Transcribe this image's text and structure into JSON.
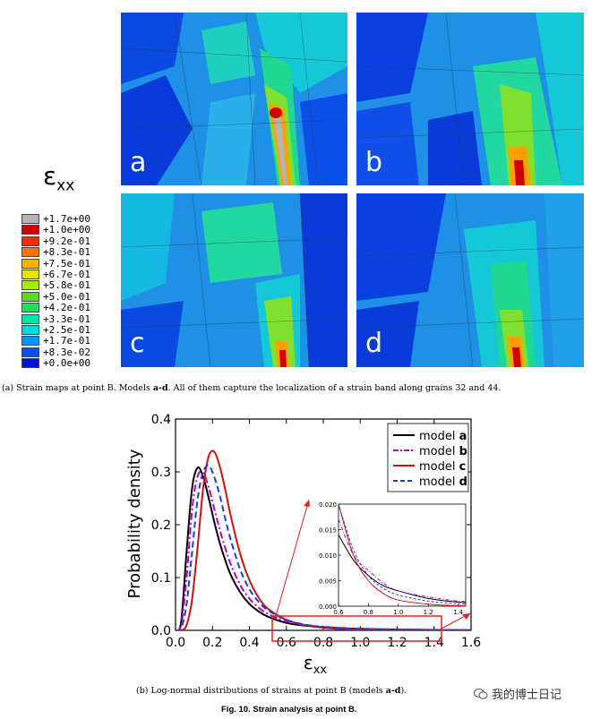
{
  "panel_a": {
    "colorbar_symbol": "ε",
    "colorbar_symbol_sub": "xx",
    "legend": [
      {
        "label": "+1.7e+00",
        "color": "#b4b4b4"
      },
      {
        "label": "+1.0e+00",
        "color": "#d00000"
      },
      {
        "label": "+9.2e-01",
        "color": "#ff2a00"
      },
      {
        "label": "+8.3e-01",
        "color": "#ff7200"
      },
      {
        "label": "+7.5e-01",
        "color": "#ffb400"
      },
      {
        "label": "+6.7e-01",
        "color": "#e5e500"
      },
      {
        "label": "+5.8e-01",
        "color": "#a6ec00"
      },
      {
        "label": "+5.0e-01",
        "color": "#5cd91c"
      },
      {
        "label": "+4.2e-01",
        "color": "#1fe05a"
      },
      {
        "label": "+3.3e-01",
        "color": "#00e5a8"
      },
      {
        "label": "+2.5e-01",
        "color": "#00d8e0"
      },
      {
        "label": "+1.7e-01",
        "color": "#0096ff"
      },
      {
        "label": "+8.3e-02",
        "color": "#0050ff"
      },
      {
        "label": "+0.0e+00",
        "color": "#0010dd"
      }
    ],
    "maps": [
      {
        "label": "a"
      },
      {
        "label": "b"
      },
      {
        "label": "c"
      },
      {
        "label": "d"
      }
    ],
    "caption": {
      "prefix": "(a) Strain maps at point B. Models ",
      "bold": "a-d",
      "suffix": ". All of them capture the localization of a strain band along grains 32 and 44."
    }
  },
  "chart_data": {
    "type": "line",
    "title": "",
    "xlabel": "ε",
    "xlabel_sub": "xx",
    "ylabel": "Probability density",
    "xlim": [
      0.0,
      1.6
    ],
    "ylim": [
      0.0,
      0.4
    ],
    "xticks": [
      "0.0",
      "0.2",
      "0.4",
      "0.6",
      "0.8",
      "1.0",
      "1.2",
      "1.4",
      "1.6"
    ],
    "yticks": [
      "0.0",
      "0.1",
      "0.2",
      "0.3",
      "0.4"
    ],
    "legend_position": "top-right",
    "x": [
      0.0,
      0.03,
      0.06,
      0.09,
      0.12,
      0.15,
      0.18,
      0.21,
      0.24,
      0.27,
      0.3,
      0.35,
      0.4,
      0.45,
      0.5,
      0.6,
      0.7,
      0.8,
      0.9,
      1.0,
      1.2,
      1.4,
      1.6
    ],
    "series": [
      {
        "name": "model ",
        "name_bold": "a",
        "color": "#000000",
        "dash": "solid",
        "values": [
          0.0,
          0.015,
          0.15,
          0.27,
          0.308,
          0.29,
          0.25,
          0.205,
          0.165,
          0.132,
          0.104,
          0.072,
          0.05,
          0.036,
          0.026,
          0.014,
          0.009,
          0.006,
          0.004,
          0.003,
          0.0015,
          0.0008,
          0.0005
        ]
      },
      {
        "name": "model ",
        "name_bold": "b",
        "color": "#c000c0",
        "dash": "dashdot",
        "values": [
          0.0,
          0.01,
          0.1,
          0.23,
          0.292,
          0.298,
          0.27,
          0.23,
          0.19,
          0.155,
          0.124,
          0.086,
          0.06,
          0.043,
          0.031,
          0.017,
          0.01,
          0.007,
          0.0045,
          0.003,
          0.0018,
          0.001,
          0.0006
        ]
      },
      {
        "name": "model ",
        "name_bold": "c",
        "color": "#d01010",
        "dash": "solid",
        "values": [
          0.0,
          0.0,
          0.01,
          0.06,
          0.16,
          0.27,
          0.33,
          0.338,
          0.31,
          0.265,
          0.215,
          0.145,
          0.095,
          0.062,
          0.041,
          0.02,
          0.01,
          0.005,
          0.0025,
          0.0012,
          0.0004,
          0.0001,
          0.0
        ]
      },
      {
        "name": "model ",
        "name_bold": "d",
        "color": "#1a40d8",
        "dash": "dashed",
        "values": [
          0.0,
          0.004,
          0.05,
          0.15,
          0.25,
          0.3,
          0.312,
          0.29,
          0.255,
          0.21,
          0.17,
          0.115,
          0.078,
          0.054,
          0.038,
          0.02,
          0.011,
          0.006,
          0.0035,
          0.0022,
          0.001,
          0.0005,
          0.0002
        ]
      }
    ],
    "inset": {
      "xlim": [
        0.6,
        1.45
      ],
      "ylim": [
        0.0,
        0.02
      ],
      "xticks": [
        "0.6",
        "0.8",
        "1.0",
        "1.2",
        "1.4"
      ],
      "yticks": [
        "0.000",
        "0.005",
        "0.010",
        "0.015",
        "0.020"
      ]
    },
    "caption": {
      "prefix": "(b) Log-normal distributions of strains at point B (models ",
      "bold": "a-d",
      "suffix": ")."
    },
    "figure_caption": "Fig. 10. Strain analysis at point B."
  },
  "watermark": {
    "text": "我的博士日记",
    "icon": "wechat-icon"
  }
}
